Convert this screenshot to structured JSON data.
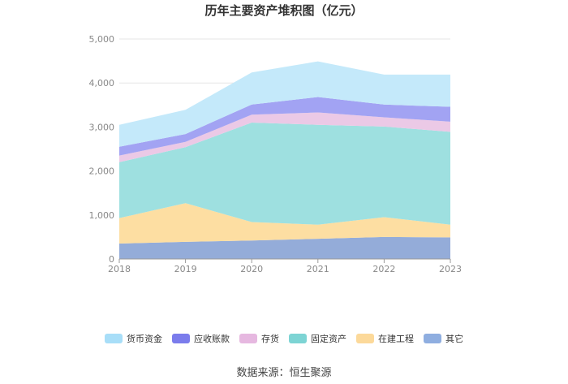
{
  "chart_data": {
    "type": "area",
    "stacked": true,
    "title": "历年主要资产堆积图（亿元）",
    "categories": [
      "2018",
      "2019",
      "2020",
      "2021",
      "2022",
      "2023"
    ],
    "ylim": [
      0,
      5000
    ],
    "yticks": [
      "0",
      "1,000",
      "2,000",
      "3,000",
      "4,000",
      "5,000"
    ],
    "series": [
      {
        "name": "其它",
        "color": "#94acd9",
        "values": [
          350,
          390,
          420,
          460,
          500,
          490
        ]
      },
      {
        "name": "在建工程",
        "color": "#fddea2",
        "values": [
          580,
          880,
          420,
          320,
          450,
          290
        ]
      },
      {
        "name": "固定资产",
        "color": "#9ee0e0",
        "values": [
          1270,
          1270,
          2260,
          2270,
          2060,
          2110
        ]
      },
      {
        "name": "存货",
        "color": "#ebc9e6",
        "values": [
          150,
          120,
          180,
          280,
          210,
          230
        ]
      },
      {
        "name": "应收账款",
        "color": "#a2a3f3",
        "values": [
          200,
          180,
          230,
          350,
          290,
          340
        ]
      },
      {
        "name": "货币资金",
        "color": "#c4e9fa",
        "values": [
          500,
          550,
          730,
          810,
          680,
          730
        ]
      }
    ],
    "legend": [
      "货币资金",
      "应收账款",
      "存货",
      "固定资产",
      "在建工程",
      "其它"
    ],
    "legend_colors": [
      "#a8def8",
      "#7b7cec",
      "#e6b8e0",
      "#7dd4d4",
      "#fcd99a",
      "#8faee0"
    ],
    "legend_position": "bottom"
  },
  "source_text": "数据来源：恒生聚源"
}
